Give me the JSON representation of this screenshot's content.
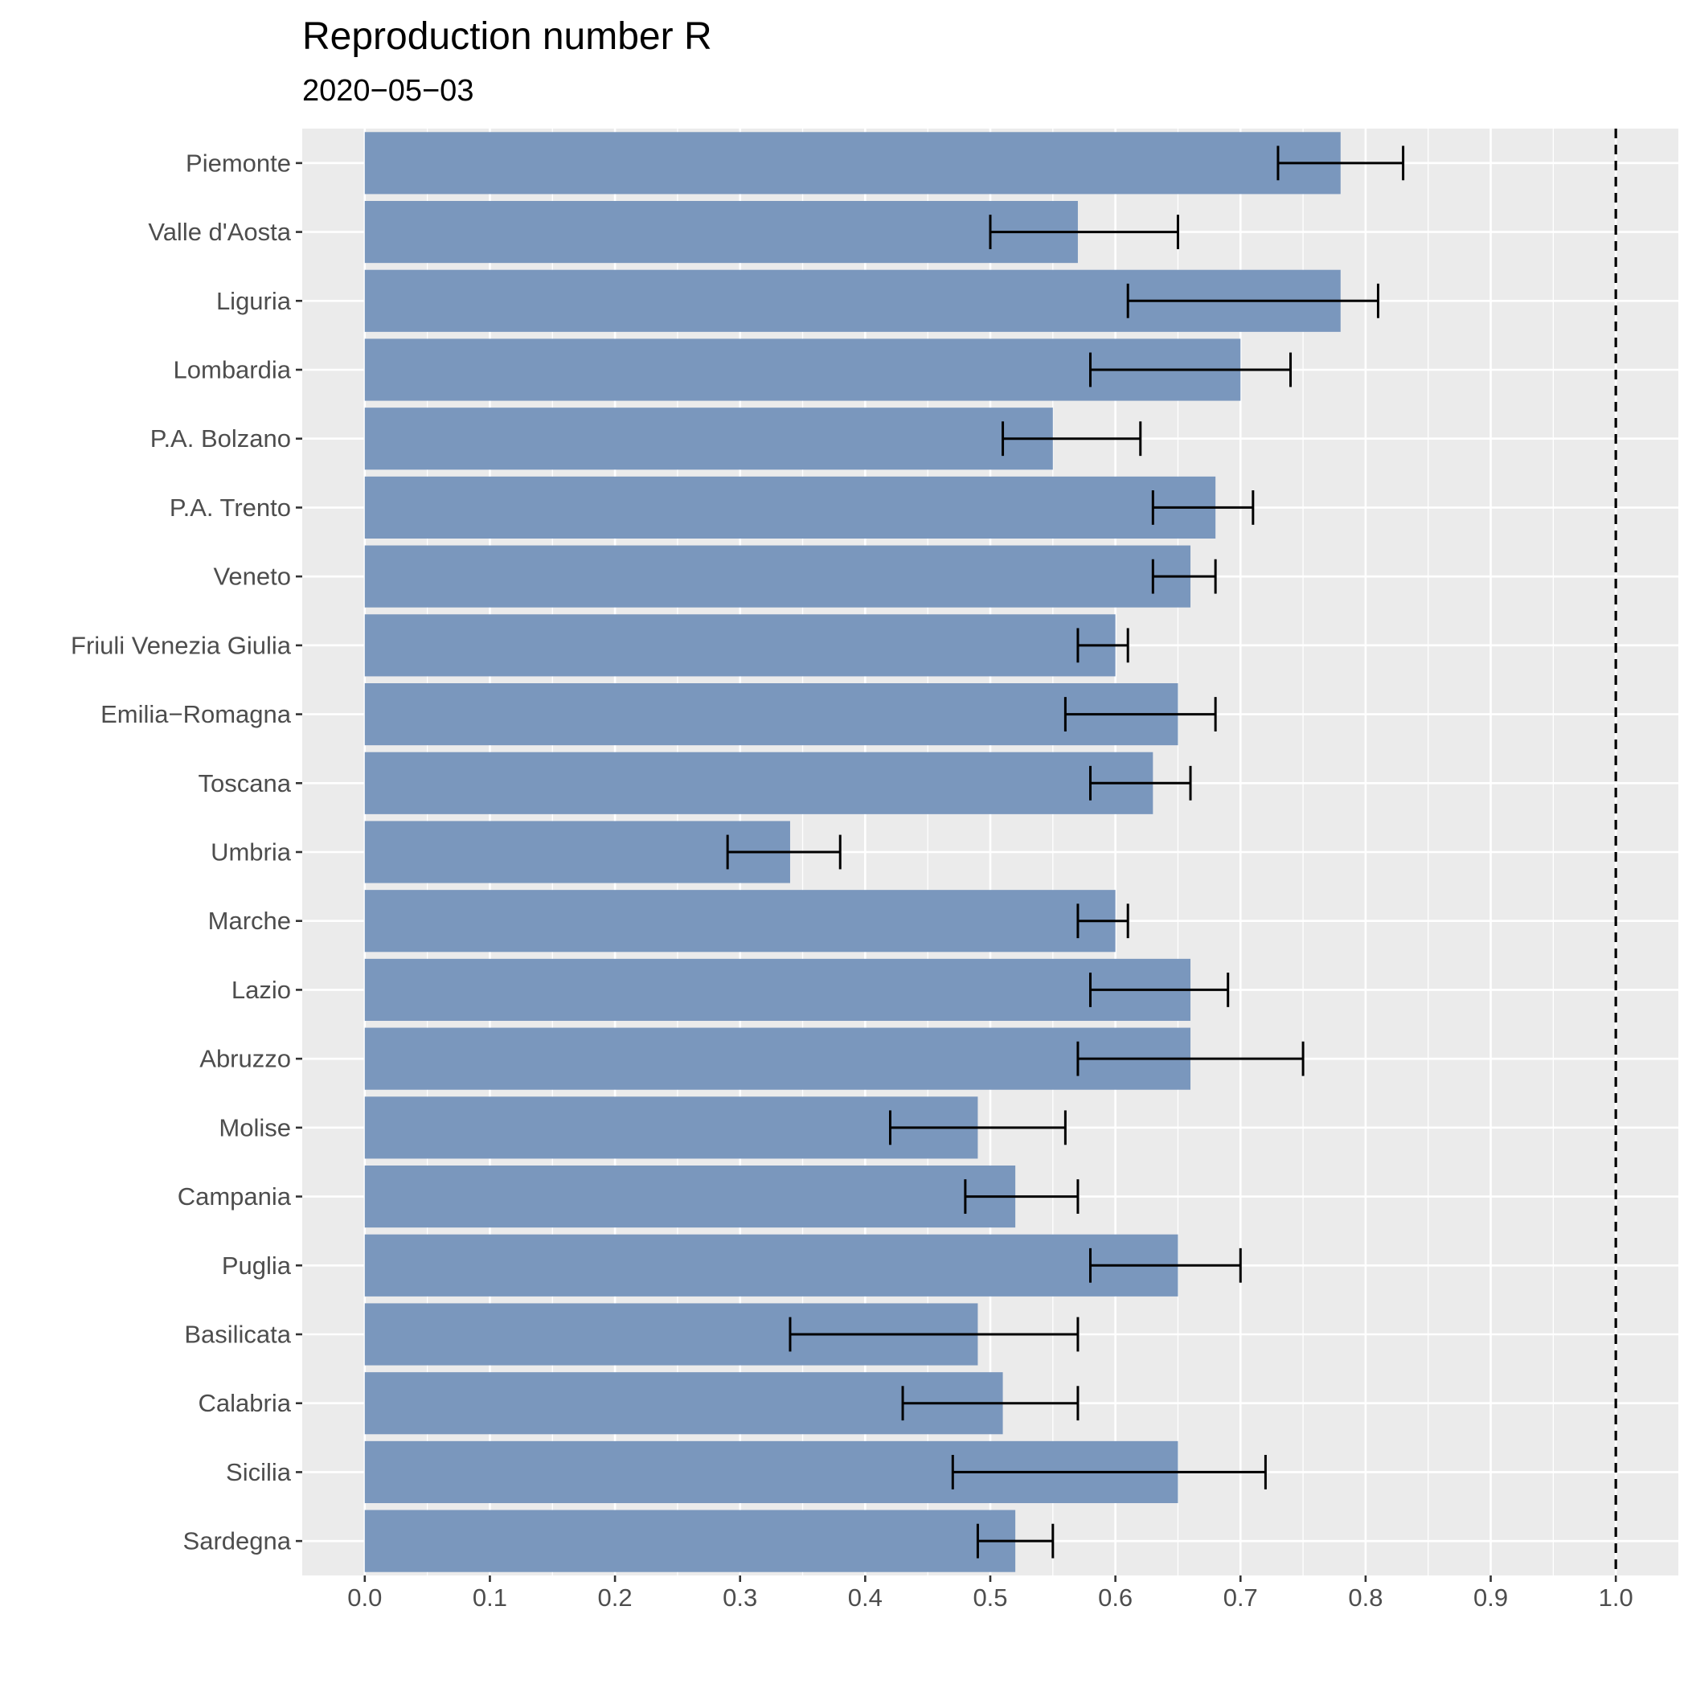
{
  "chart_data": {
    "type": "bar",
    "orientation": "horizontal",
    "title": "Reproduction number R",
    "subtitle": "2020−05−03",
    "xlabel": "",
    "ylabel": "",
    "xlim": [
      -0.05,
      1.05
    ],
    "x_ticks": [
      "0.0",
      "0.1",
      "0.2",
      "0.3",
      "0.4",
      "0.5",
      "0.6",
      "0.7",
      "0.8",
      "0.9",
      "1.0"
    ],
    "reference_line": 1.0,
    "grid": true,
    "legend": "none",
    "categories": [
      "Piemonte",
      "Valle d'Aosta",
      "Liguria",
      "Lombardia",
      "P.A. Bolzano",
      "P.A. Trento",
      "Veneto",
      "Friuli Venezia Giulia",
      "Emilia−Romagna",
      "Toscana",
      "Umbria",
      "Marche",
      "Lazio",
      "Abruzzo",
      "Molise",
      "Campania",
      "Puglia",
      "Basilicata",
      "Calabria",
      "Sicilia",
      "Sardegna"
    ],
    "values": [
      0.78,
      0.57,
      0.78,
      0.7,
      0.55,
      0.68,
      0.66,
      0.6,
      0.65,
      0.63,
      0.34,
      0.6,
      0.66,
      0.66,
      0.49,
      0.52,
      0.65,
      0.49,
      0.51,
      0.65,
      0.52
    ],
    "lower": [
      0.73,
      0.5,
      0.61,
      0.58,
      0.51,
      0.63,
      0.63,
      0.57,
      0.56,
      0.58,
      0.29,
      0.57,
      0.58,
      0.57,
      0.42,
      0.48,
      0.58,
      0.34,
      0.43,
      0.47,
      0.49
    ],
    "upper": [
      0.83,
      0.65,
      0.81,
      0.74,
      0.62,
      0.71,
      0.68,
      0.61,
      0.68,
      0.66,
      0.38,
      0.61,
      0.69,
      0.75,
      0.56,
      0.57,
      0.7,
      0.57,
      0.57,
      0.72,
      0.55
    ],
    "colors": {
      "bar": "#7a97bd",
      "panel": "#ebebeb",
      "grid": "#ffffff",
      "errorbar": "#000000",
      "reference": "#000000"
    }
  }
}
